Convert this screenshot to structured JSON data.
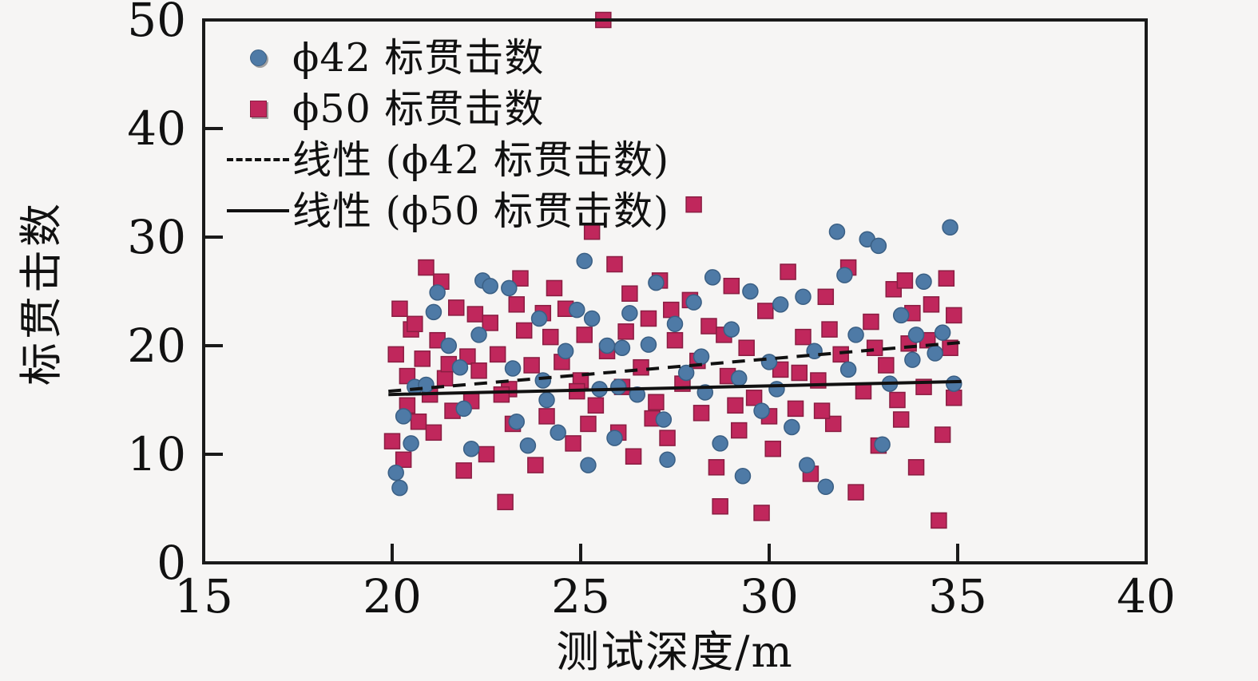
{
  "figure": {
    "background": "#f6f5f4",
    "frame_color": "#1a1a1a"
  },
  "chart_data": {
    "type": "scatter",
    "title": "",
    "xlabel": "测试深度/m",
    "ylabel": "标贯击数",
    "xlim": [
      15,
      40
    ],
    "ylim": [
      0,
      50
    ],
    "xticks": [
      15,
      20,
      25,
      30,
      35,
      40
    ],
    "yticks": [
      0,
      10,
      20,
      30,
      40,
      50
    ],
    "grid": false,
    "legend_position": "upper-left-inside",
    "series": [
      {
        "name": "ϕ42 标贯击数",
        "marker": "circle",
        "color": "#4e7aa6",
        "edge_color": "#3a5f84",
        "points": [
          [
            20.1,
            8.3
          ],
          [
            20.2,
            6.9
          ],
          [
            20.3,
            13.5
          ],
          [
            20.5,
            11.0
          ],
          [
            20.6,
            16.2
          ],
          [
            20.9,
            16.4
          ],
          [
            21.1,
            23.1
          ],
          [
            21.2,
            24.9
          ],
          [
            21.5,
            20.0
          ],
          [
            21.8,
            18.0
          ],
          [
            21.9,
            14.2
          ],
          [
            22.1,
            10.5
          ],
          [
            22.3,
            21.0
          ],
          [
            22.4,
            26.0
          ],
          [
            22.6,
            25.5
          ],
          [
            23.1,
            25.3
          ],
          [
            23.2,
            17.9
          ],
          [
            23.3,
            13.0
          ],
          [
            23.6,
            10.8
          ],
          [
            23.9,
            22.5
          ],
          [
            24.1,
            15.0
          ],
          [
            24.4,
            12.0
          ],
          [
            24.6,
            19.5
          ],
          [
            24.9,
            23.3
          ],
          [
            25.1,
            27.8
          ],
          [
            25.3,
            22.5
          ],
          [
            25.5,
            16.0
          ],
          [
            25.7,
            20.0
          ],
          [
            25.9,
            11.5
          ],
          [
            26.1,
            19.8
          ],
          [
            26.3,
            23.0
          ],
          [
            26.5,
            15.5
          ],
          [
            26.8,
            20.1
          ],
          [
            27.0,
            25.8
          ],
          [
            27.2,
            13.2
          ],
          [
            27.5,
            22.0
          ],
          [
            27.8,
            17.5
          ],
          [
            28.0,
            24.0
          ],
          [
            28.2,
            19.0
          ],
          [
            28.5,
            26.3
          ],
          [
            28.7,
            11.0
          ],
          [
            29.0,
            21.5
          ],
          [
            29.2,
            17.0
          ],
          [
            29.5,
            25.0
          ],
          [
            29.8,
            14.0
          ],
          [
            30.0,
            18.5
          ],
          [
            30.3,
            23.8
          ],
          [
            30.6,
            12.5
          ],
          [
            30.9,
            24.5
          ],
          [
            31.2,
            19.5
          ],
          [
            31.5,
            7.0
          ],
          [
            31.8,
            30.5
          ],
          [
            32.0,
            26.5
          ],
          [
            32.3,
            21.0
          ],
          [
            32.6,
            29.8
          ],
          [
            32.9,
            29.2
          ],
          [
            33.2,
            16.5
          ],
          [
            33.5,
            22.8
          ],
          [
            33.8,
            18.7
          ],
          [
            34.1,
            25.9
          ],
          [
            34.4,
            19.3
          ],
          [
            34.8,
            30.9
          ],
          [
            34.9,
            16.5
          ],
          [
            34.6,
            21.2
          ],
          [
            33.0,
            10.9
          ],
          [
            31.0,
            9.0
          ],
          [
            29.3,
            8.0
          ],
          [
            27.3,
            9.5
          ],
          [
            25.2,
            9.0
          ],
          [
            24.0,
            16.8
          ],
          [
            26.0,
            16.2
          ],
          [
            28.3,
            15.7
          ],
          [
            30.2,
            16.0
          ],
          [
            32.1,
            17.8
          ],
          [
            33.9,
            21.0
          ]
        ]
      },
      {
        "name": "ϕ50 标贯击数",
        "marker": "square",
        "color": "#c0275c",
        "edge_color": "#8a1d42",
        "points": [
          [
            20.0,
            11.2
          ],
          [
            20.1,
            19.2
          ],
          [
            20.2,
            23.4
          ],
          [
            20.3,
            9.5
          ],
          [
            20.4,
            14.5
          ],
          [
            20.5,
            21.5
          ],
          [
            20.6,
            22.0
          ],
          [
            20.7,
            13.0
          ],
          [
            20.8,
            18.8
          ],
          [
            20.9,
            27.2
          ],
          [
            21.0,
            15.5
          ],
          [
            21.1,
            12.0
          ],
          [
            21.3,
            25.9
          ],
          [
            21.4,
            17.0
          ],
          [
            21.6,
            14.0
          ],
          [
            21.7,
            23.5
          ],
          [
            21.9,
            8.5
          ],
          [
            22.0,
            19.0
          ],
          [
            22.1,
            14.9
          ],
          [
            22.2,
            22.9
          ],
          [
            22.3,
            17.7
          ],
          [
            22.5,
            10.0
          ],
          [
            22.6,
            22.1
          ],
          [
            22.8,
            19.2
          ],
          [
            23.0,
            5.6
          ],
          [
            23.1,
            16.0
          ],
          [
            23.2,
            12.8
          ],
          [
            23.4,
            26.2
          ],
          [
            23.5,
            21.4
          ],
          [
            23.7,
            18.2
          ],
          [
            23.8,
            9.0
          ],
          [
            24.0,
            23.0
          ],
          [
            24.1,
            13.5
          ],
          [
            24.3,
            25.3
          ],
          [
            24.5,
            18.5
          ],
          [
            24.6,
            23.4
          ],
          [
            24.8,
            11.0
          ],
          [
            25.0,
            16.8
          ],
          [
            25.1,
            21.0
          ],
          [
            25.3,
            30.5
          ],
          [
            25.4,
            14.5
          ],
          [
            25.6,
            50.0
          ],
          [
            25.7,
            19.5
          ],
          [
            25.9,
            27.5
          ],
          [
            26.0,
            12.0
          ],
          [
            26.1,
            16.2
          ],
          [
            26.3,
            24.8
          ],
          [
            26.4,
            9.8
          ],
          [
            26.6,
            18.0
          ],
          [
            26.8,
            22.5
          ],
          [
            27.0,
            14.8
          ],
          [
            27.1,
            26.0
          ],
          [
            27.3,
            11.5
          ],
          [
            27.5,
            20.5
          ],
          [
            27.7,
            16.5
          ],
          [
            27.9,
            24.2
          ],
          [
            28.0,
            33.0
          ],
          [
            28.2,
            13.8
          ],
          [
            28.4,
            21.8
          ],
          [
            28.6,
            8.8
          ],
          [
            28.7,
            5.2
          ],
          [
            28.9,
            17.2
          ],
          [
            29.0,
            25.5
          ],
          [
            29.2,
            12.2
          ],
          [
            29.4,
            19.8
          ],
          [
            29.6,
            15.2
          ],
          [
            29.8,
            4.6
          ],
          [
            29.9,
            23.2
          ],
          [
            30.1,
            10.5
          ],
          [
            30.3,
            17.8
          ],
          [
            30.5,
            26.8
          ],
          [
            30.7,
            14.2
          ],
          [
            30.9,
            20.8
          ],
          [
            31.1,
            8.2
          ],
          [
            31.3,
            16.8
          ],
          [
            31.5,
            24.5
          ],
          [
            31.7,
            12.8
          ],
          [
            31.9,
            19.2
          ],
          [
            32.1,
            27.2
          ],
          [
            32.3,
            6.5
          ],
          [
            32.5,
            15.8
          ],
          [
            32.7,
            22.2
          ],
          [
            32.9,
            10.8
          ],
          [
            33.1,
            18.2
          ],
          [
            33.3,
            25.2
          ],
          [
            33.5,
            13.2
          ],
          [
            33.7,
            20.2
          ],
          [
            33.9,
            8.8
          ],
          [
            34.1,
            16.2
          ],
          [
            34.3,
            23.8
          ],
          [
            34.5,
            3.9
          ],
          [
            34.6,
            11.8
          ],
          [
            34.7,
            26.2
          ],
          [
            34.8,
            19.8
          ],
          [
            34.9,
            15.2
          ],
          [
            34.9,
            22.8
          ],
          [
            33.6,
            26.0
          ],
          [
            21.2,
            20.5
          ],
          [
            22.9,
            15.5
          ],
          [
            24.2,
            20.8
          ],
          [
            26.2,
            21.3
          ],
          [
            28.1,
            18.6
          ],
          [
            30.0,
            13.5
          ],
          [
            31.6,
            21.5
          ],
          [
            33.4,
            15.0
          ],
          [
            34.2,
            20.5
          ],
          [
            23.3,
            23.8
          ],
          [
            25.2,
            12.8
          ],
          [
            27.4,
            23.3
          ],
          [
            29.1,
            14.5
          ],
          [
            30.8,
            17.5
          ],
          [
            32.8,
            19.8
          ],
          [
            20.4,
            17.2
          ],
          [
            21.5,
            18.3
          ],
          [
            24.9,
            15.8
          ],
          [
            26.9,
            13.3
          ],
          [
            28.8,
            21.0
          ],
          [
            31.4,
            14.0
          ],
          [
            33.8,
            23.0
          ]
        ]
      }
    ],
    "trendlines": [
      {
        "name": "线性 (ϕ42 标贯击数)",
        "style": "dashed",
        "color": "#111111",
        "x1": 19.9,
        "y1": 15.8,
        "x2": 35.1,
        "y2": 20.3
      },
      {
        "name": "线性 (ϕ50 标贯击数)",
        "style": "solid",
        "color": "#111111",
        "x1": 19.9,
        "y1": 15.5,
        "x2": 35.1,
        "y2": 16.7
      }
    ]
  }
}
